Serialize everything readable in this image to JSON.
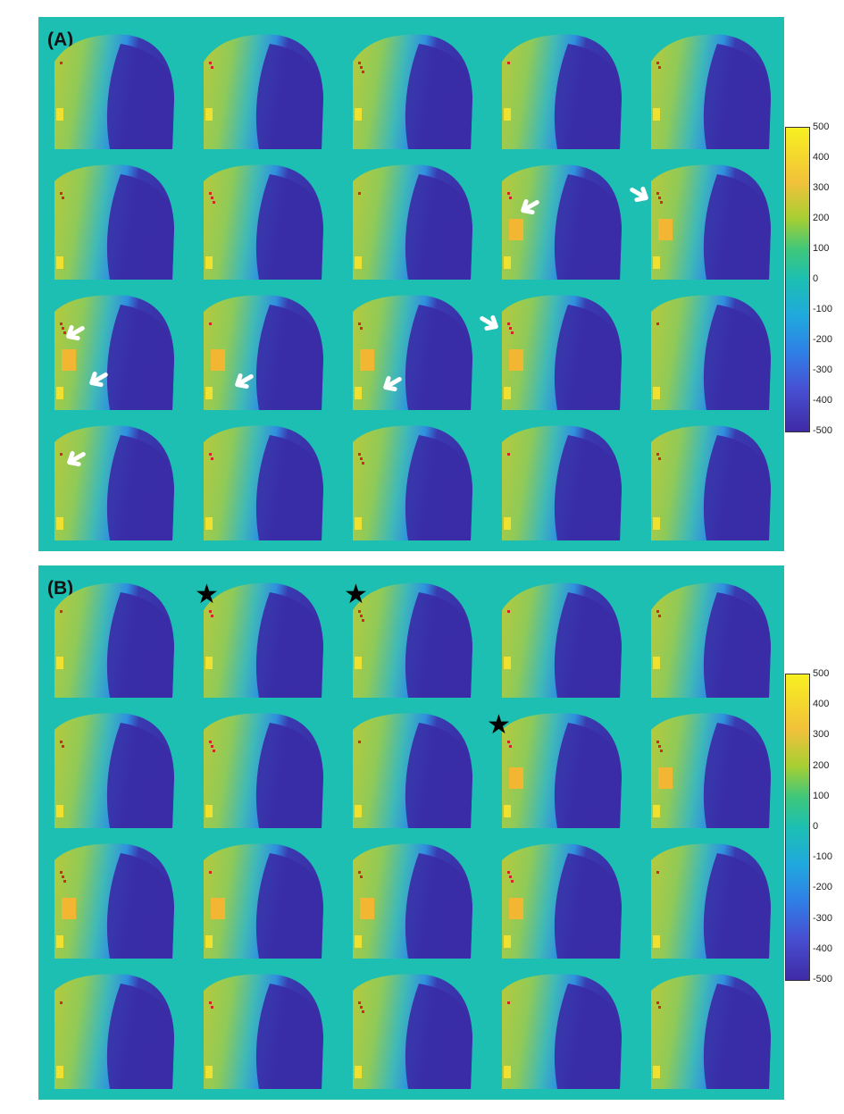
{
  "panels": [
    {
      "id": "A",
      "label": "(A)"
    },
    {
      "id": "B",
      "label": "(B)"
    }
  ],
  "colorbar": {
    "ticks": [
      "500",
      "400",
      "300",
      "200",
      "100",
      "0",
      "-100",
      "-200",
      "-300",
      "-400",
      "-500"
    ],
    "colors": {
      "max": "#f7f020",
      "high": "#f2c13a",
      "mid": "#1cbfb2",
      "low": "#2f7fe6",
      "min": "#3f2aa6"
    }
  },
  "markers": {
    "arrow_color": "#ffffff",
    "star_symbol": "★",
    "roi_color": "#f2b632",
    "dot_color": "#d2262a"
  }
}
